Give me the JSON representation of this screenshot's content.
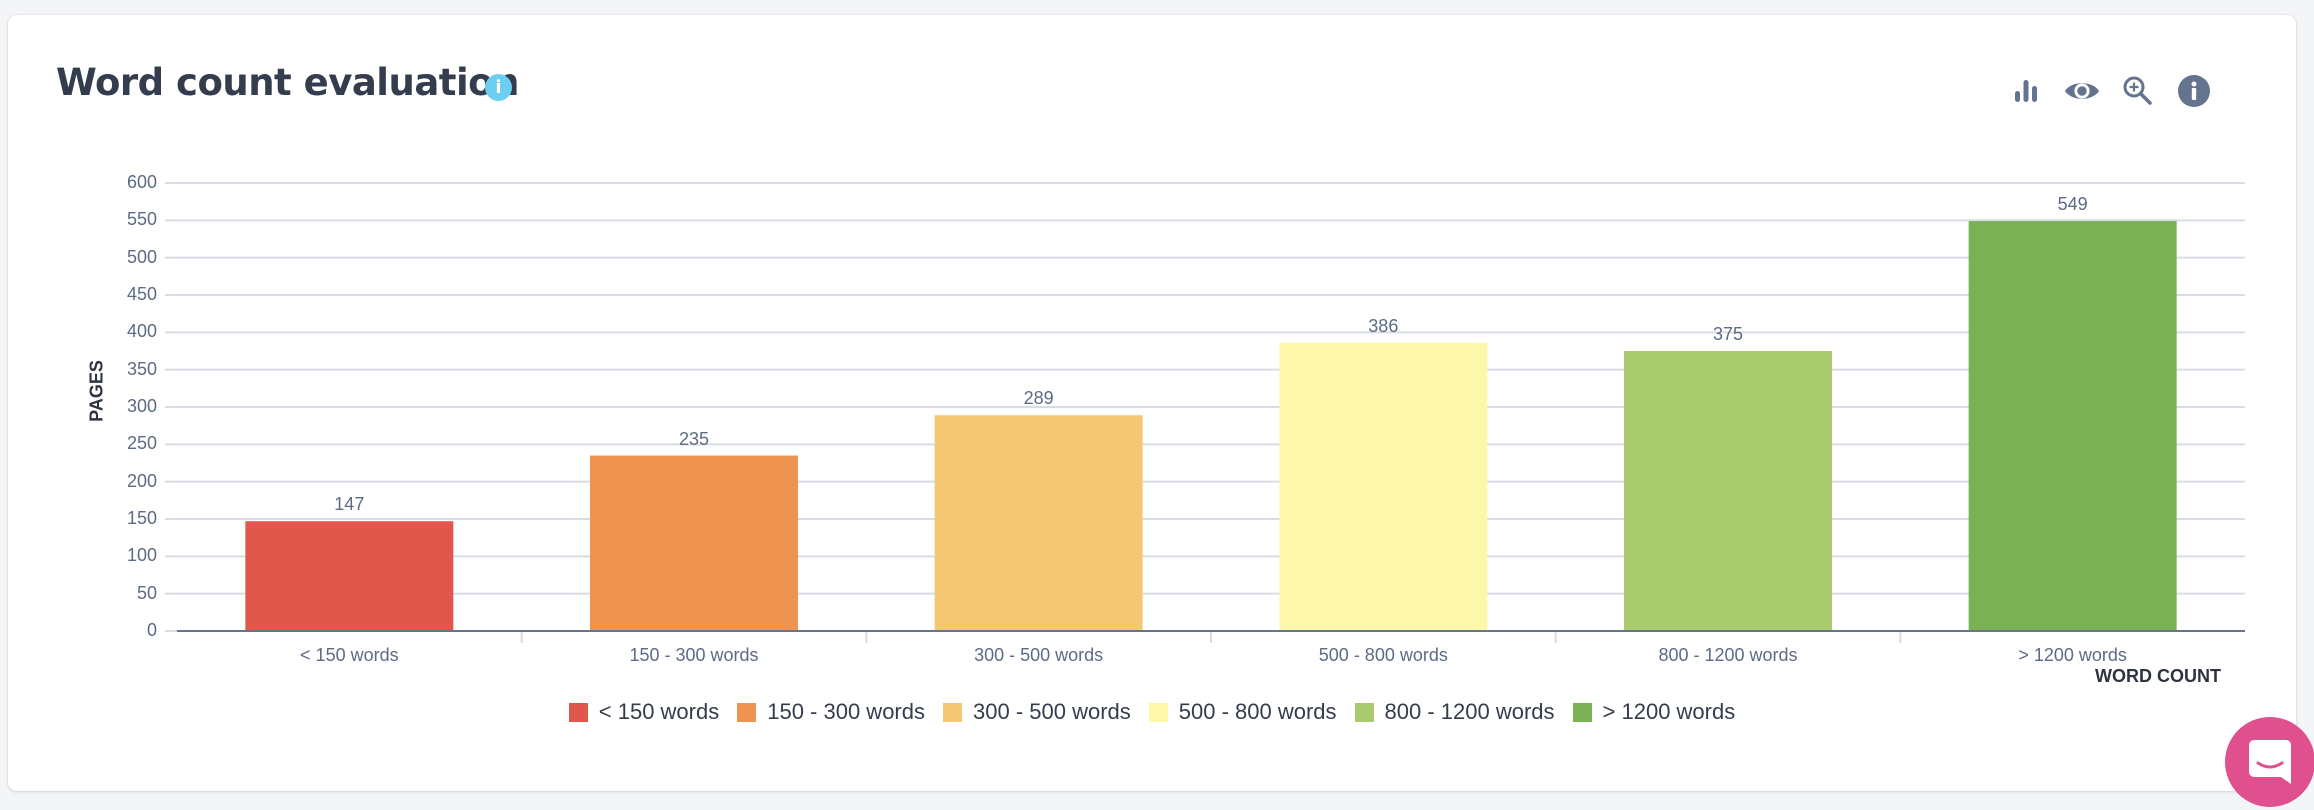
{
  "header": {
    "title": "Word count evaluation",
    "title_info_icon": "i",
    "toolbar": [
      {
        "name": "bar-chart-icon"
      },
      {
        "name": "eye-icon"
      },
      {
        "name": "zoom-in-icon"
      },
      {
        "name": "info-icon"
      }
    ]
  },
  "colors": {
    "background": "#f4f5f7",
    "title": "#343d4d",
    "info_accent": "#6ccff2",
    "icon": "#64748f",
    "chat": "#e0508e"
  },
  "chart_data": {
    "type": "bar",
    "title": "Word count evaluation",
    "xlabel": "WORD COUNT",
    "ylabel": "PAGES",
    "ylim": [
      0,
      600
    ],
    "y_ticks": [
      "0",
      "50",
      "100",
      "150",
      "200",
      "250",
      "300",
      "350",
      "400",
      "450",
      "500",
      "550",
      "600"
    ],
    "grid": true,
    "legend_position": "bottom",
    "categories": [
      "< 150 words",
      "150 - 300 words",
      "300 - 500 words",
      "500 - 800 words",
      "800 - 1200 words",
      "> 1200 words"
    ],
    "values": [
      147,
      235,
      289,
      386,
      375,
      549
    ],
    "value_labels": [
      "147",
      "235",
      "289",
      "386",
      "375",
      "549"
    ],
    "colors": [
      "#e2574c",
      "#ef9350",
      "#f4c773",
      "#fdf7a9",
      "#a9ca6d",
      "#7bb155"
    ]
  },
  "legend": [
    {
      "label": "< 150 words",
      "color": "#e2574c"
    },
    {
      "label": "150 - 300 words",
      "color": "#ef9350"
    },
    {
      "label": "300 - 500 words",
      "color": "#f4c773"
    },
    {
      "label": "500 - 800 words",
      "color": "#fdf7a9"
    },
    {
      "label": "800 - 1200 words",
      "color": "#a9ca6d"
    },
    {
      "label": "> 1200 words",
      "color": "#7bb155"
    }
  ]
}
